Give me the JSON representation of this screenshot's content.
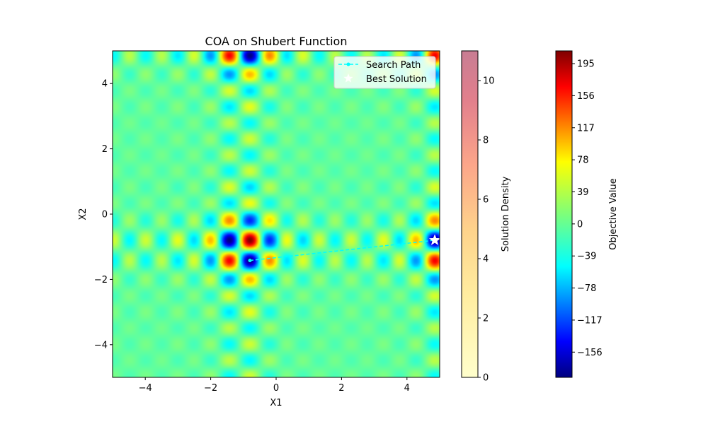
{
  "chart_data": {
    "type": "heatmap",
    "title": "COA on Shubert Function",
    "xlabel": "X1",
    "ylabel": "X2",
    "xlim": [
      -5,
      5
    ],
    "ylim": [
      -5,
      5
    ],
    "x_ticks": [
      -4,
      -2,
      0,
      2,
      4
    ],
    "y_ticks": [
      -4,
      -2,
      0,
      2,
      4
    ],
    "x_tick_labels": [
      "−4",
      "−2",
      "0",
      "2",
      "4"
    ],
    "y_tick_labels": [
      "−4",
      "−2",
      "0",
      "2",
      "4"
    ],
    "function": "Shubert",
    "colormap": "jet",
    "grid": false,
    "legend_position": "top-right",
    "legend": [
      {
        "label": "Search Path",
        "marker": "dashed-line-dot",
        "color": "#00ffff"
      },
      {
        "label": "Best Solution",
        "marker": "star",
        "color": "#ffffff"
      }
    ],
    "series": [
      {
        "name": "Search Path",
        "x": [
          -0.8,
          4.85
        ],
        "y": [
          -1.42,
          -0.8
        ]
      },
      {
        "name": "Best Solution",
        "x": [
          4.85
        ],
        "y": [
          -0.8
        ]
      }
    ],
    "colorbars": [
      {
        "label": "Solution Density",
        "colormap": "YlOrRd",
        "range": [
          0,
          11
        ],
        "ticks": [
          0,
          2,
          4,
          6,
          8,
          10
        ],
        "tick_labels": [
          "0",
          "2",
          "4",
          "6",
          "8",
          "10"
        ]
      },
      {
        "label": "Objective Value",
        "colormap": "jet",
        "range": [
          -186.7,
          210.5
        ],
        "ticks": [
          -156,
          -117,
          -78,
          -39,
          0,
          39,
          78,
          117,
          156,
          195
        ],
        "tick_labels": [
          "−156",
          "−117",
          "−78",
          "−39",
          "0",
          "39",
          "78",
          "117",
          "156",
          "195"
        ]
      }
    ]
  }
}
